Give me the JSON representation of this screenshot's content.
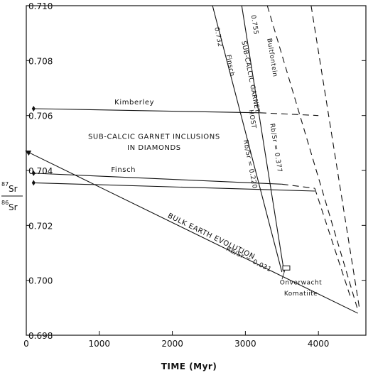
{
  "chart_data": {
    "type": "line",
    "xlabel": "TIME (Myr)",
    "ylabel": {
      "num_sup": "87",
      "num": "Sr",
      "den_sup": "86",
      "den": "Sr"
    },
    "xlim": [
      0,
      4650
    ],
    "ylim": [
      0.698,
      0.71
    ],
    "x_ticks": [
      "0",
      "1000",
      "2000",
      "3000",
      "4000"
    ],
    "x_tick_values": [
      0,
      1000,
      2000,
      3000,
      4000
    ],
    "y_ticks": [
      "0.698",
      "0.700",
      "0.702",
      "0.704",
      "0.706",
      "0.708",
      "0.710"
    ],
    "y_tick_values": [
      0.698,
      0.7,
      0.702,
      0.704,
      0.706,
      0.708,
      0.71
    ],
    "grid": false,
    "series": [
      {
        "name": "BULK EARTH EVOLUTION",
        "style": "solid",
        "arrow": true,
        "x": [
          4540,
          0
        ],
        "y": [
          0.6988,
          0.7047
        ]
      },
      {
        "name": "Kimberley",
        "style": "solid",
        "x": [
          100,
          3200
        ],
        "y": [
          0.70625,
          0.7061
        ]
      },
      {
        "name": "Kimberley",
        "style": "dashed",
        "x": [
          3200,
          4000
        ],
        "y": [
          0.7061,
          0.706
        ]
      },
      {
        "name": "Finsch",
        "style": "solid",
        "x": [
          100,
          3500
        ],
        "y": [
          0.7039,
          0.7035
        ]
      },
      {
        "name": "Finsch",
        "style": "dashed",
        "x": [
          3500,
          3950
        ],
        "y": [
          0.7035,
          0.70335
        ]
      },
      {
        "name": "Finsch",
        "style": "solid",
        "x": [
          100,
          3950
        ],
        "y": [
          0.70355,
          0.70325
        ]
      },
      {
        "name": "SUB-CALCIC GARNET Rb/Sr = 0.220",
        "style": "solid",
        "x": [
          2550,
          3500
        ],
        "y": [
          0.71,
          0.7003
        ]
      },
      {
        "name": "HOST Rb/Sr = 0.377",
        "style": "solid",
        "x": [
          2950,
          3530
        ],
        "y": [
          0.71,
          0.7003
        ]
      },
      {
        "name": "0.755 Bultfontein",
        "style": "dashed",
        "x": [
          3300,
          4530
        ],
        "y": [
          0.71,
          0.699
        ]
      },
      {
        "name": "",
        "style": "dashed",
        "x": [
          3900,
          4560
        ],
        "y": [
          0.71,
          0.699
        ]
      },
      {
        "name": "",
        "style": "dashed",
        "x": [
          3950,
          4450
        ],
        "y": [
          0.70335,
          0.6993
        ]
      }
    ],
    "points": [
      {
        "name": "Kimberley",
        "x": 100,
        "y": 0.70625
      },
      {
        "name": "Finsch",
        "x": 100,
        "y": 0.7039
      },
      {
        "name": "Finsch",
        "x": 100,
        "y": 0.70355
      }
    ],
    "box": {
      "x": 3560,
      "y": 0.70045
    },
    "annotations": [
      {
        "text": "Kimberley",
        "x": 1480,
        "y": 0.7064,
        "rotate": 0,
        "size": "big"
      },
      {
        "text": "SUB-CALCIC GARNET INCLUSIONS",
        "x": 1750,
        "y": 0.70515,
        "rotate": 0,
        "size": "big"
      },
      {
        "text": "IN DIAMONDS",
        "x": 1750,
        "y": 0.70475,
        "rotate": 0,
        "size": "big"
      },
      {
        "text": "Finsch",
        "x": 1330,
        "y": 0.70395,
        "rotate": 0,
        "size": "big"
      },
      {
        "text": "BULK EARTH EVOLUTION",
        "x": 1930,
        "y": 0.7023,
        "rotate": 26,
        "size": "big"
      },
      {
        "text": "Rb/Sr = 0.031",
        "x": 2730,
        "y": 0.7011,
        "rotate": 26,
        "size": "small"
      },
      {
        "text": "0.732",
        "x": 2580,
        "y": 0.7092,
        "rotate": 79,
        "size": "small"
      },
      {
        "text": "Finsch",
        "x": 2740,
        "y": 0.7082,
        "rotate": 79,
        "size": "small"
      },
      {
        "text": "SUB-CALCIC GARNET",
        "x": 2950,
        "y": 0.7087,
        "rotate": 79,
        "size": "small"
      },
      {
        "text": "Rb/Sr = 0.220",
        "x": 2975,
        "y": 0.7051,
        "rotate": 79,
        "size": "small"
      },
      {
        "text": "0.755",
        "x": 3080,
        "y": 0.70965,
        "rotate": 81,
        "size": "small"
      },
      {
        "text": "Bultfontein",
        "x": 3300,
        "y": 0.7088,
        "rotate": 81,
        "size": "small"
      },
      {
        "text": "HOST",
        "x": 3050,
        "y": 0.7062,
        "rotate": 81,
        "size": "small"
      },
      {
        "text": "Rb/Sr = 0.377",
        "x": 3340,
        "y": 0.7057,
        "rotate": 81,
        "size": "small"
      },
      {
        "text": "Onverwacht",
        "x": 3760,
        "y": 0.69985,
        "rotate": 0,
        "size": "small"
      },
      {
        "text": "Komatiite",
        "x": 3760,
        "y": 0.69945,
        "rotate": 0,
        "size": "small"
      }
    ]
  }
}
